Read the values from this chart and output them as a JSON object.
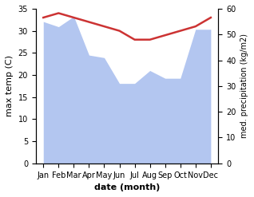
{
  "months": [
    "Jan",
    "Feb",
    "Mar",
    "Apr",
    "May",
    "Jun",
    "Jul",
    "Aug",
    "Sep",
    "Oct",
    "Nov",
    "Dec"
  ],
  "temperature": [
    33.0,
    34.0,
    33.0,
    32.0,
    31.0,
    30.0,
    28.0,
    28.0,
    29.0,
    30.0,
    31.0,
    33.0
  ],
  "precipitation": [
    55,
    53,
    57,
    42,
    41,
    31,
    31,
    36,
    33,
    33,
    52,
    52
  ],
  "temp_color": "#cc3333",
  "precip_color": "#b3c6f0",
  "xlabel": "date (month)",
  "ylabel_left": "max temp (C)",
  "ylabel_right": "med. precipitation (kg/m2)",
  "ylim_left": [
    0,
    35
  ],
  "ylim_right": [
    0,
    60
  ],
  "yticks_left": [
    0,
    5,
    10,
    15,
    20,
    25,
    30,
    35
  ],
  "yticks_right": [
    0,
    10,
    20,
    30,
    40,
    50,
    60
  ],
  "temp_linewidth": 1.8
}
